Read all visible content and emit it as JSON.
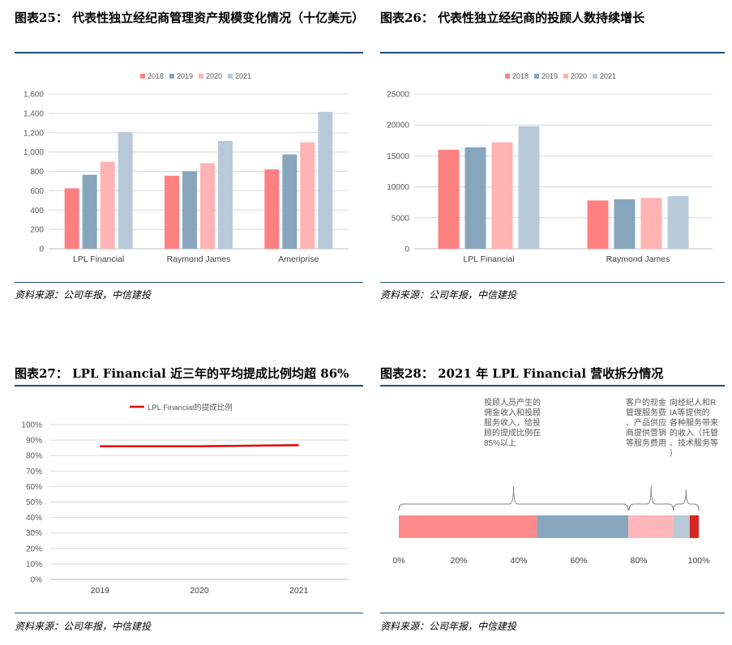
{
  "colors": {
    "c2018": "#ff8080",
    "c2019": "#87a6bd",
    "c2020": "#ffb3b3",
    "c2021": "#b8cad9",
    "rule": "#1f4e79",
    "line": "#e00000",
    "s_red": "#ff8a8a",
    "s_blue": "#87a6bd",
    "s_pink": "#ffb6b9",
    "s_lightblue": "#b8cad9",
    "s_dark": "#d62626"
  },
  "charts": {
    "c25": {
      "title": "图表25： 代表性独立经纪商管理资产规模变化情况（十亿美元）",
      "source": "资料来源：公司年报，中信建投"
    },
    "c26": {
      "title": "图表26： 代表性独立经纪商的投顾人数持续增长",
      "source": "资料来源：公司年报，中信建投"
    },
    "c27": {
      "title": "图表27： LPL Financial 近三年的平均提成比例均超 86%",
      "source": "资料来源：公司年报，中信建投"
    },
    "c28": {
      "title": "图表28： 2021 年 LPL Financial 营收拆分情况",
      "source": "资料来源：公司年报，中信建投"
    }
  },
  "chart_data": [
    {
      "type": "bar",
      "categories": [
        "LPL Financial",
        "Raymond James",
        "Ameriprise"
      ],
      "series": [
        {
          "name": "2018",
          "values": [
            625,
            755,
            820
          ]
        },
        {
          "name": "2019",
          "values": [
            765,
            800,
            975
          ]
        },
        {
          "name": "2020",
          "values": [
            900,
            885,
            1100
          ]
        },
        {
          "name": "2021",
          "values": [
            1205,
            1115,
            1415
          ]
        }
      ],
      "ylim": [
        0,
        1600
      ],
      "yticks": [
        "0",
        "200",
        "400",
        "600",
        "800",
        "1,000",
        "1,200",
        "1,400",
        "1,600"
      ],
      "legend": "top-center",
      "grid": true
    },
    {
      "type": "bar",
      "categories": [
        "LPL Financial",
        "Raymond James"
      ],
      "series": [
        {
          "name": "2018",
          "values": [
            16000,
            7800
          ]
        },
        {
          "name": "2019",
          "values": [
            16400,
            8000
          ]
        },
        {
          "name": "2020",
          "values": [
            17200,
            8200
          ]
        },
        {
          "name": "2021",
          "values": [
            19800,
            8500
          ]
        }
      ],
      "ylim": [
        0,
        25000
      ],
      "yticks": [
        "0",
        "5000",
        "10000",
        "15000",
        "20000",
        "25000"
      ],
      "legend": "top-center",
      "grid": true
    },
    {
      "type": "line",
      "categories": [
        "2019",
        "2020",
        "2021"
      ],
      "series": [
        {
          "name": "LPL Financial的提成比例",
          "values": [
            0.86,
            0.86,
            0.867
          ]
        }
      ],
      "ylim": [
        0,
        1
      ],
      "yticks": [
        "0%",
        "10%",
        "20%",
        "30%",
        "40%",
        "50%",
        "60%",
        "70%",
        "80%",
        "90%",
        "100%"
      ],
      "legend": "top-left",
      "grid": true
    },
    {
      "type": "bar",
      "orientation": "horizontal-stacked",
      "segments": [
        {
          "value": 0.46
        },
        {
          "value": 0.305
        },
        {
          "value": 0.15
        },
        {
          "value": 0.055
        },
        {
          "value": 0.03
        }
      ],
      "xticks": [
        "0%",
        "20%",
        "40%",
        "60%",
        "80%",
        "100%"
      ],
      "annotations": [
        "投顾人员产生的佣金收入和投顾服务收入，给投顾的提成比例在85%以上",
        "客户的现金管理服务费、产品供应商提供营销等服务费用",
        "向经纪人和RIA等提供的各种服务带来的收入（托管、技术服务等）"
      ]
    }
  ]
}
